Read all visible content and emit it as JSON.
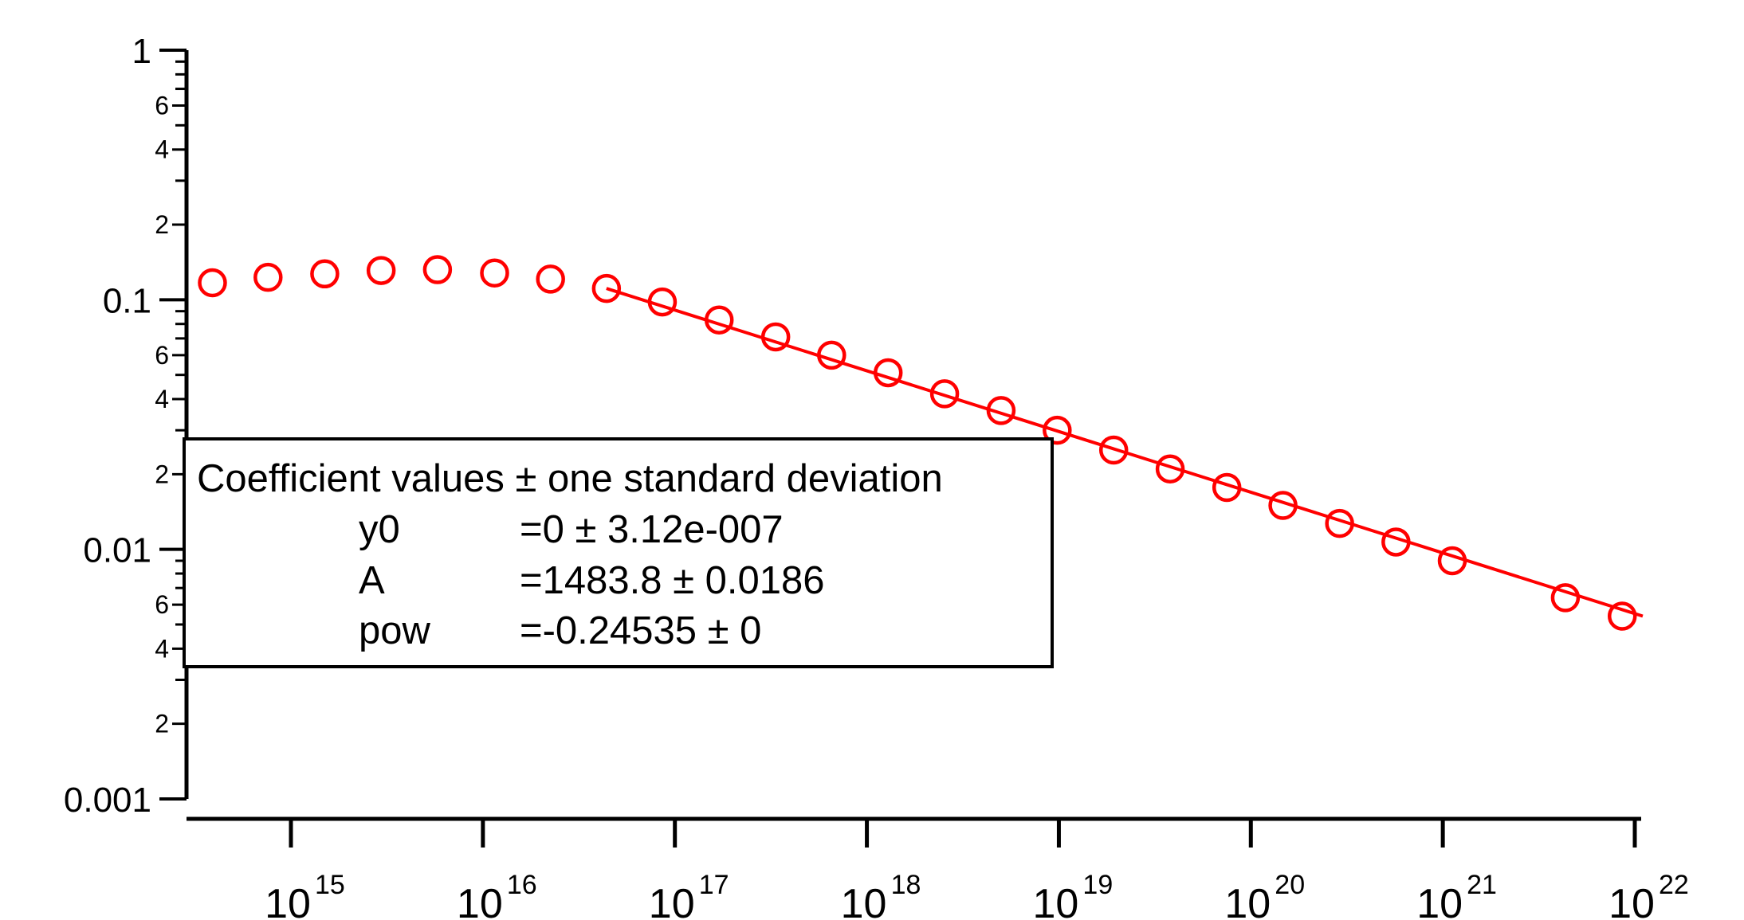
{
  "chart_data": {
    "type": "scatter",
    "title": "",
    "xlabel": "",
    "ylabel": "",
    "x_scale": "log",
    "y_scale": "log",
    "xlim": [
      300000000000000.0,
      1.5e+22
    ],
    "ylim": [
      0.001,
      1
    ],
    "x_tick_labels": [
      {
        "value": 1000000000000000.0,
        "base": "10",
        "exp": "15"
      },
      {
        "value": 1e+16,
        "base": "10",
        "exp": "16"
      },
      {
        "value": 1e+17,
        "base": "10",
        "exp": "17"
      },
      {
        "value": 1e+18,
        "base": "10",
        "exp": "18"
      },
      {
        "value": 1e+19,
        "base": "10",
        "exp": "19"
      },
      {
        "value": 1e+20,
        "base": "10",
        "exp": "20"
      },
      {
        "value": 1e+21,
        "base": "10",
        "exp": "21"
      },
      {
        "value": 1e+22,
        "base": "10",
        "exp": "22"
      }
    ],
    "y_major_ticks": [
      {
        "value": 1,
        "label": "1"
      },
      {
        "value": 0.1,
        "label": "0.1"
      },
      {
        "value": 0.01,
        "label": "0.01"
      },
      {
        "value": 0.001,
        "label": "0.001"
      }
    ],
    "y_minor_labels": [
      {
        "value": 0.6,
        "label": "6"
      },
      {
        "value": 0.4,
        "label": "4"
      },
      {
        "value": 0.2,
        "label": "2"
      },
      {
        "value": 0.06,
        "label": "6"
      },
      {
        "value": 0.04,
        "label": "4"
      },
      {
        "value": 0.02,
        "label": "2"
      },
      {
        "value": 0.006,
        "label": "6"
      },
      {
        "value": 0.004,
        "label": "4"
      },
      {
        "value": 0.002,
        "label": "2"
      }
    ],
    "series": [
      {
        "marker": "open-circle",
        "color": "#ff0000",
        "x": [
          390000000000000.0,
          760000000000000.0,
          1500000000000000.0,
          2950000000000000.0,
          5800000000000000.0,
          1.15e+16,
          2.25e+16,
          4.4e+16,
          8.6e+16,
          1.7e+17,
          3.35e+17,
          6.55e+17,
          1.29e+18,
          2.54e+18,
          5e+18,
          9.8e+18,
          1.93e+19,
          3.8e+19,
          7.5e+19,
          1.47e+20,
          2.9e+20,
          5.7e+20,
          1.12e+21,
          4.35e+21,
          8.6e+21
        ],
        "y": [
          0.117,
          0.123,
          0.127,
          0.131,
          0.132,
          0.128,
          0.121,
          0.111,
          0.098,
          0.083,
          0.071,
          0.06,
          0.051,
          0.042,
          0.036,
          0.03,
          0.025,
          0.021,
          0.0177,
          0.015,
          0.0127,
          0.0107,
          0.009,
          0.0064,
          0.0054
        ]
      }
    ],
    "fit_line": {
      "color": "#ff0000",
      "x": [
        4.4e+16,
        1.1e+22
      ],
      "y": [
        0.111,
        0.0054
      ]
    },
    "annotation": {
      "header": "Coefficient values ± one standard deviation",
      "rows": [
        {
          "name": "y0",
          "value": "=0 ± 3.12e-007"
        },
        {
          "name": "A",
          "value": "=1483.8 ± 0.0186"
        },
        {
          "name": "pow",
          "value": "=-0.24535 ± 0"
        }
      ]
    }
  }
}
